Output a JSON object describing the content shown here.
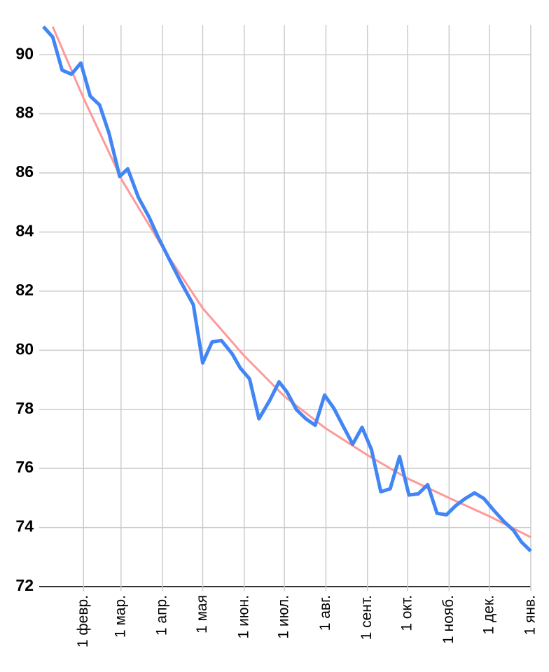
{
  "chart_data": {
    "type": "line",
    "xlim": [
      0,
      365
    ],
    "xticks": [
      {
        "value": 31,
        "label": "1 февр."
      },
      {
        "value": 59,
        "label": "1 мар."
      },
      {
        "value": 90,
        "label": "1 апр."
      },
      {
        "value": 120,
        "label": "1 мая"
      },
      {
        "value": 151,
        "label": "1 июн."
      },
      {
        "value": 181,
        "label": "1 июл."
      },
      {
        "value": 212,
        "label": "1 авг."
      },
      {
        "value": 243,
        "label": "1 сент."
      },
      {
        "value": 273,
        "label": "1 окт."
      },
      {
        "value": 304,
        "label": "1 нояб."
      },
      {
        "value": 334,
        "label": "1 дек."
      },
      {
        "value": 365,
        "label": "1 янв."
      }
    ],
    "ylim": [
      72,
      91
    ],
    "yticks": [
      72,
      74,
      76,
      78,
      80,
      82,
      84,
      86,
      88,
      90
    ],
    "grid": true,
    "series": [
      {
        "color": "#ff9999",
        "width": 3,
        "x": [
          8,
          31,
          60,
          91,
          120,
          151,
          181,
          212,
          243,
          273,
          305,
          335,
          365
        ],
        "values": [
          90.95,
          88.53,
          85.73,
          83.41,
          81.42,
          79.81,
          78.44,
          77.35,
          76.45,
          75.66,
          74.98,
          74.36,
          73.67
        ]
      },
      {
        "color": "#4285f4",
        "width": 5,
        "x": [
          1,
          8,
          15,
          22,
          29,
          36,
          43,
          50,
          58,
          64,
          72,
          80,
          87,
          95,
          103,
          113,
          120,
          127,
          134,
          142,
          148,
          155,
          162,
          170,
          177,
          183,
          190,
          197,
          204,
          211,
          218,
          225,
          232,
          239,
          246,
          253,
          260,
          267,
          274,
          281,
          288,
          295,
          302,
          309,
          316,
          323,
          330,
          337,
          345,
          352,
          358,
          365
        ],
        "values": [
          90.95,
          90.6,
          89.48,
          89.34,
          89.72,
          88.6,
          88.3,
          87.35,
          85.88,
          86.14,
          85.17,
          84.5,
          83.8,
          83.08,
          82.37,
          81.54,
          79.57,
          80.28,
          80.33,
          79.88,
          79.4,
          79.03,
          77.68,
          78.3,
          78.93,
          78.58,
          77.99,
          77.68,
          77.46,
          78.48,
          78.03,
          77.42,
          76.82,
          77.39,
          76.64,
          75.21,
          75.31,
          76.4,
          75.1,
          75.14,
          75.45,
          74.48,
          74.43,
          74.74,
          74.98,
          75.17,
          74.98,
          74.6,
          74.2,
          73.91,
          73.51,
          73.2
        ]
      }
    ]
  }
}
